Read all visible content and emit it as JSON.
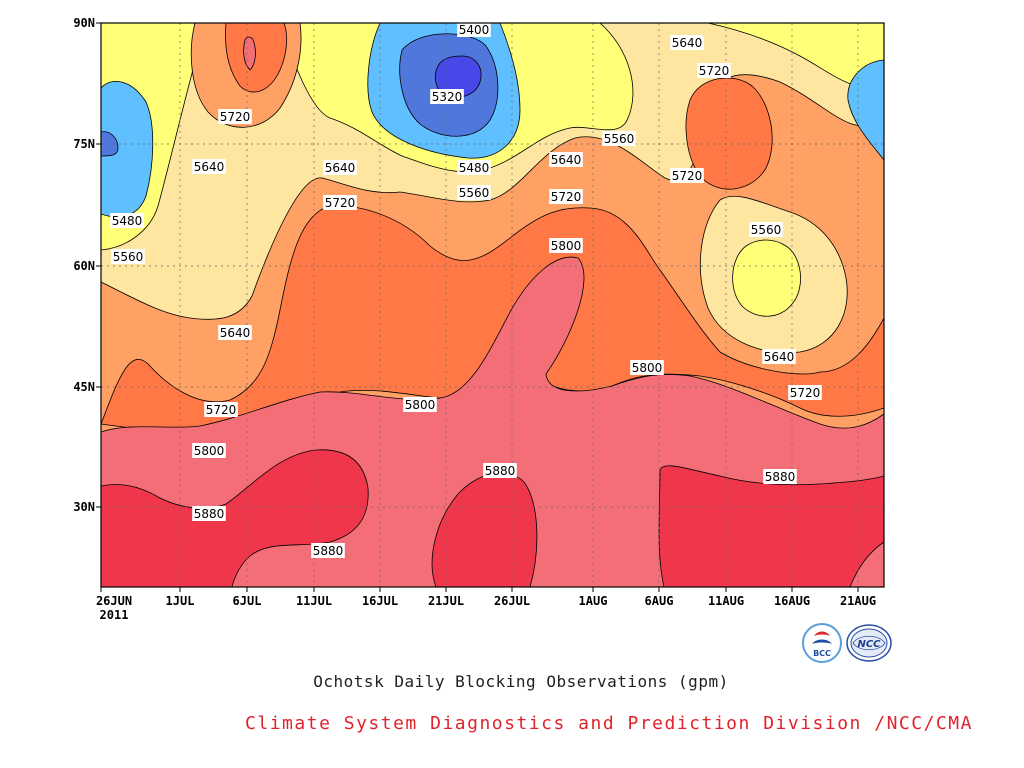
{
  "chart_data": {
    "type": "contour",
    "xlabel": "",
    "ylabel": "",
    "x_ticks": [
      "26JUN",
      "1JUL",
      "6JUL",
      "11JUL",
      "16JUL",
      "21JUL",
      "26JUL",
      "1AUG",
      "6AUG",
      "11AUG",
      "16AUG",
      "21AUG"
    ],
    "x_year": "2011",
    "y_ticks": [
      "90N",
      "75N",
      "60N",
      "45N",
      "30N"
    ],
    "contour_labels": [
      "5320",
      "5400",
      "5480",
      "5560",
      "5640",
      "5720",
      "5800",
      "5880"
    ],
    "fill_colors": {
      "lt5320": "#4848e8",
      "5320-5400": "#5078dc",
      "5400-5480": "#60c0ff",
      "5480-5560": "#ffff78",
      "5560-5640": "#ffe6a0",
      "5640-5720": "#ffa064",
      "5720-5800": "#ff7846",
      "5800-5880": "#f46e78",
      "gt5880": "#f0364a"
    },
    "grid": true
  },
  "titles": {
    "main": "Ochotsk Daily Blocking Observations (gpm)",
    "credit": "Climate System Diagnostics and Prediction Division /NCC/CMA"
  },
  "logos": {
    "bcc": "BCC",
    "ncc": "NCC"
  }
}
